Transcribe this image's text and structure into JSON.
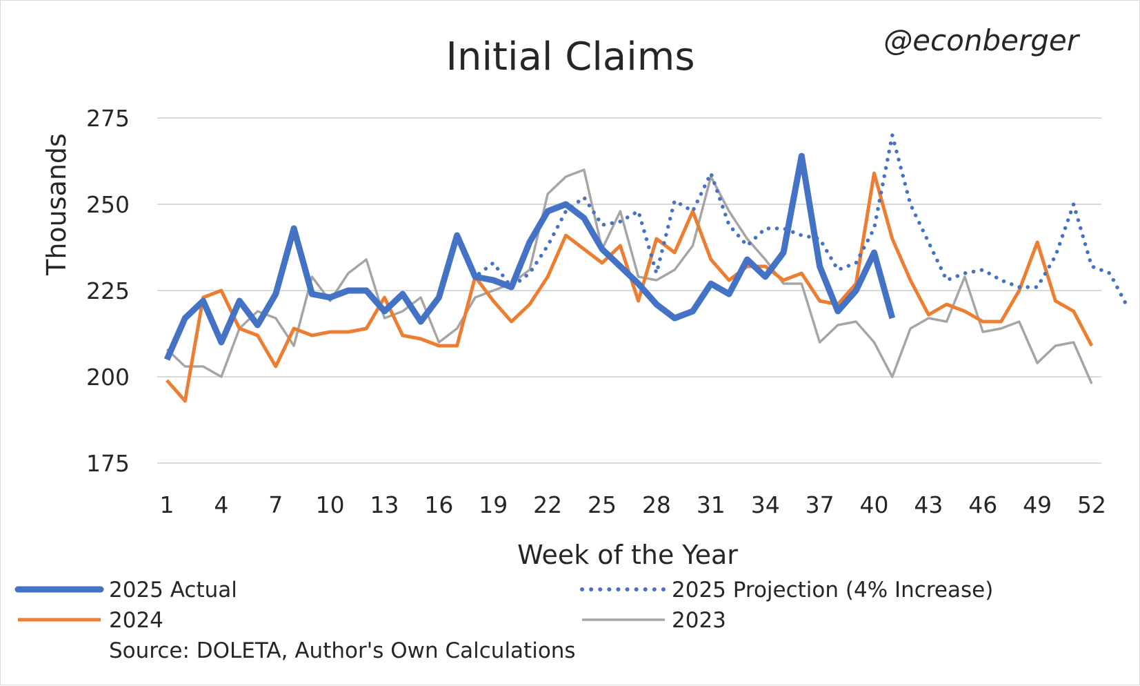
{
  "chart_data": {
    "type": "line",
    "title": "Initial Claims",
    "handle": "@econberger",
    "xlabel": "Week of the Year",
    "ylabel": "Thousands",
    "ylim": [
      175,
      275
    ],
    "yticks": [
      175,
      200,
      225,
      250,
      275
    ],
    "xlim": [
      1,
      52
    ],
    "xticks": [
      1,
      4,
      7,
      10,
      13,
      16,
      19,
      22,
      25,
      28,
      31,
      34,
      37,
      40,
      43,
      46,
      49,
      52
    ],
    "grid": true,
    "source": "Source: DOLETA, Author's Own Calculations",
    "colors": {
      "actual2025": "#4472c4",
      "y2024": "#ed7d31",
      "y2023": "#a5a5a5",
      "projection": "#4472c4"
    },
    "series": [
      {
        "key": "actual2025",
        "name": "2025 Actual",
        "x_start": 1,
        "values": [
          205,
          217,
          222,
          210,
          222,
          215,
          224,
          243,
          224,
          223,
          225,
          225,
          219,
          224,
          216,
          223,
          241,
          229,
          228,
          226,
          239,
          248,
          250,
          246,
          237,
          232,
          227,
          221,
          217,
          219,
          227,
          224,
          234,
          229,
          236,
          264,
          232,
          219,
          225,
          236,
          217
        ]
      },
      {
        "key": "projection",
        "name": "2025 Projection (4% Increase)",
        "x_start": 17,
        "values": [
          241,
          229,
          233,
          226,
          230,
          238,
          248,
          252,
          244,
          245,
          248,
          230,
          251,
          248,
          259,
          244,
          238,
          243,
          243,
          241,
          240,
          231,
          233,
          243,
          270,
          250,
          239,
          228,
          230,
          231,
          228,
          226,
          226,
          235,
          250,
          232,
          230,
          220
        ]
      },
      {
        "key": "y2024",
        "name": "2024",
        "x_start": 1,
        "values": [
          199,
          193,
          223,
          225,
          214,
          212,
          203,
          214,
          212,
          213,
          213,
          214,
          223,
          212,
          211,
          209,
          209,
          229,
          222,
          216,
          221,
          229,
          241,
          237,
          233,
          238,
          222,
          240,
          236,
          248,
          234,
          228,
          232,
          232,
          228,
          230,
          222,
          221,
          227,
          259,
          240,
          228,
          218,
          221,
          219,
          216,
          216,
          225,
          239,
          222,
          219,
          209
        ]
      },
      {
        "key": "y2023",
        "name": "2023",
        "x_start": 1,
        "values": [
          208,
          203,
          203,
          200,
          214,
          219,
          217,
          209,
          229,
          222,
          230,
          234,
          217,
          219,
          223,
          210,
          214,
          223,
          225,
          227,
          231,
          253,
          258,
          260,
          237,
          248,
          229,
          228,
          231,
          238,
          258,
          248,
          240,
          234,
          227,
          227,
          210,
          215,
          216,
          210,
          200,
          214,
          217,
          216,
          229,
          213,
          214,
          216,
          204,
          209,
          210,
          198
        ]
      }
    ]
  }
}
